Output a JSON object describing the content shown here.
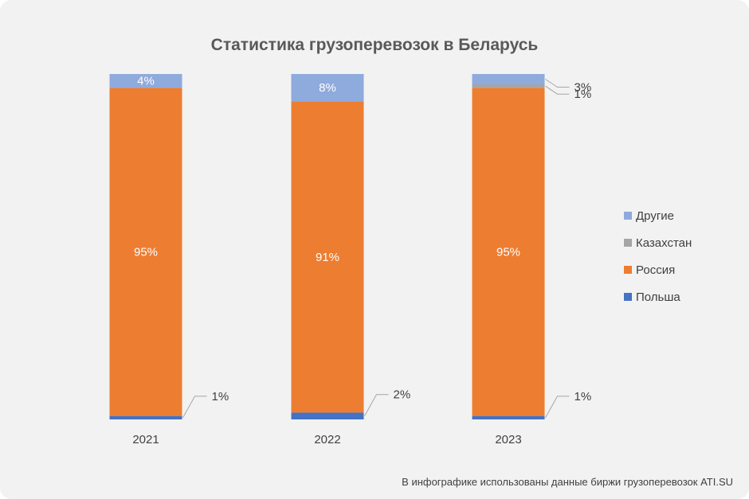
{
  "chart_data": {
    "type": "bar",
    "stacked": true,
    "title": "Статистика грузоперевозок в Беларусь",
    "categories": [
      "2021",
      "2022",
      "2023"
    ],
    "series": [
      {
        "name": "Польша",
        "color": "#4472c4",
        "values": [
          1,
          2,
          1
        ],
        "labels": [
          "1%",
          "2%",
          "1%"
        ]
      },
      {
        "name": "Россия",
        "color": "#ed7d31",
        "values": [
          95,
          91,
          95
        ],
        "labels": [
          "95%",
          "91%",
          "95%"
        ]
      },
      {
        "name": "Казахстан",
        "color": "#a5a5a5",
        "values": [
          0,
          0,
          1
        ],
        "labels": [
          "",
          "",
          "1%"
        ]
      },
      {
        "name": "Другие",
        "color": "#8faadc",
        "values": [
          4,
          8,
          3
        ],
        "labels": [
          "4%",
          "8%",
          "3%"
        ]
      }
    ],
    "legend_order": [
      "Другие",
      "Казахстан",
      "Россия",
      "Польша"
    ],
    "legend_position": "right",
    "ylim": [
      0,
      100
    ],
    "grid": false
  },
  "footer": "В инфографике использованы данные биржи грузоперевозок ATI.SU"
}
